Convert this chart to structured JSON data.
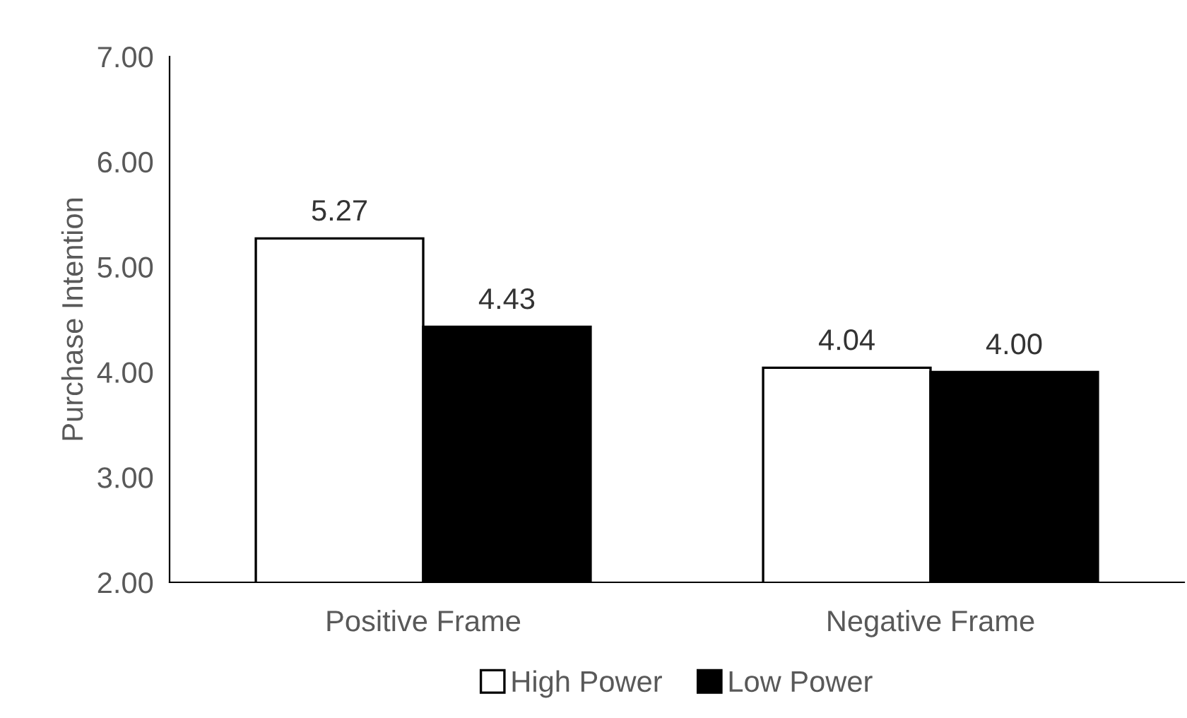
{
  "chart_data": {
    "type": "bar",
    "ylabel": "Purchase Intention",
    "categories": [
      "Positive Frame",
      "Negative Frame"
    ],
    "series": [
      {
        "name": "High Power",
        "color": "#ffffff",
        "values": [
          5.27,
          4.04
        ],
        "value_labels": [
          "5.27",
          "4.04"
        ]
      },
      {
        "name": "Low Power",
        "color": "#000000",
        "values": [
          4.43,
          4.0
        ],
        "value_labels": [
          "4.43",
          "4.00"
        ]
      }
    ],
    "ylim": [
      2,
      7
    ],
    "yticks": [
      {
        "value": 2,
        "label": "2.00"
      },
      {
        "value": 3,
        "label": "3.00"
      },
      {
        "value": 4,
        "label": "4.00"
      },
      {
        "value": 5,
        "label": "5.00"
      },
      {
        "value": 6,
        "label": "6.00"
      },
      {
        "value": 7,
        "label": "7.00"
      }
    ],
    "grid": false,
    "legend": "bottom"
  }
}
